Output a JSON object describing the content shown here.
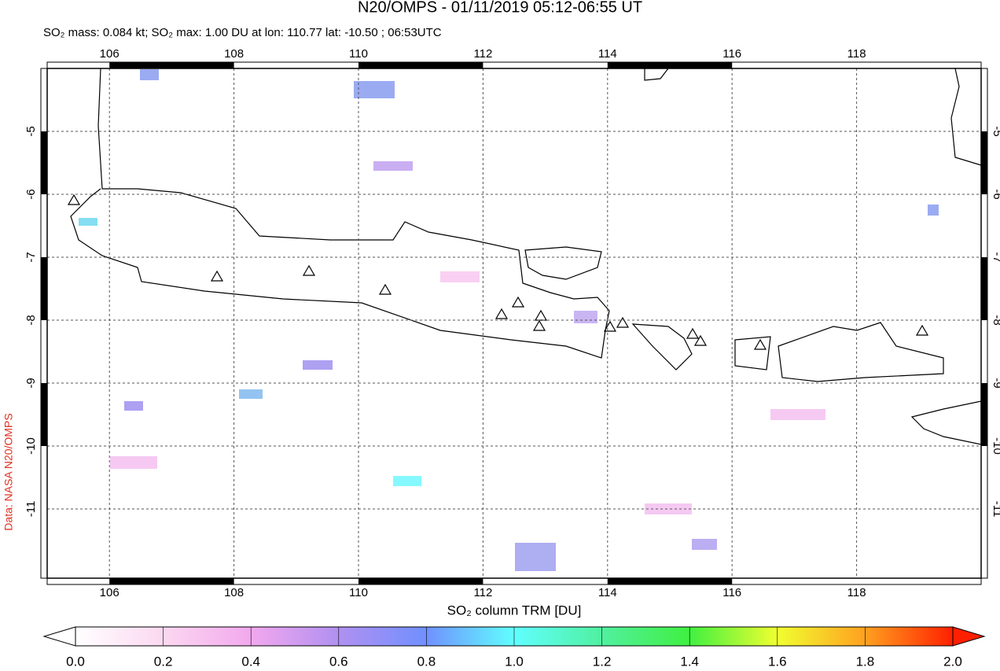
{
  "map": {
    "title": "N20/OMPS - 01/11/2019 05:12-06:55 UT",
    "subtitle": "SO₂ mass: 0.084 kt; SO₂ max: 1.00 DU at lon: 110.77 lat: -10.50 ; 06:53UTC",
    "source": "Data: NASA N20/OMPS",
    "xlim": [
      105,
      120
    ],
    "ylim": [
      -12.1,
      -4
    ],
    "xticks": [
      106,
      108,
      110,
      112,
      114,
      116,
      118
    ],
    "yticks": [
      -5,
      -6,
      -7,
      -8,
      -9,
      -10,
      -11
    ],
    "grid": true,
    "colorbar": {
      "label": "SO₂ column TRM [DU]",
      "lim": [
        0,
        2
      ],
      "ticks": [
        {
          "value": 0,
          "label": "0.0"
        },
        {
          "value": 0.2,
          "label": "0.2"
        },
        {
          "value": 0.4,
          "label": "0.4"
        },
        {
          "value": 0.6,
          "label": "0.6"
        },
        {
          "value": 0.8,
          "label": "0.8"
        },
        {
          "value": 1,
          "label": "1.0"
        },
        {
          "value": 1.2,
          "label": "1.2"
        },
        {
          "value": 1.4,
          "label": "1.4"
        },
        {
          "value": 1.6,
          "label": "1.6"
        },
        {
          "value": 1.8,
          "label": "1.8"
        },
        {
          "value": 2,
          "label": "2.0"
        }
      ]
    }
  }
}
